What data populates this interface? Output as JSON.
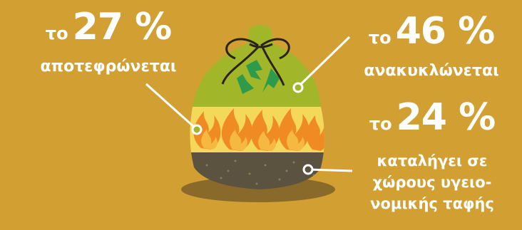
{
  "callouts": {
    "incinerated": {
      "prefix": "το",
      "percent": "27 %",
      "text": "αποτεφρώνεται"
    },
    "recycled": {
      "prefix": "το",
      "percent": "46 %",
      "text": "ανακυκλώνεται"
    },
    "landfill": {
      "prefix": "το",
      "percent": "24 %",
      "text_lines": [
        "καταλήγει σε",
        "χώρους υγειο-",
        "νομικής ταφής"
      ]
    }
  },
  "colors": {
    "background": "#d2a032",
    "recycled_layer": "#a2b62a",
    "fire_layer": "#f4d85a",
    "landfill_layer": "#5c5240",
    "flame_outer": "#f08a22",
    "flame_inner": "#f5b840",
    "recycle_symbol": "#2e9a4c",
    "tie": "#2a2418",
    "shadow": "#8a6a2a"
  },
  "icons": [
    "recycle-icon",
    "flame-icon",
    "bag-tie-icon"
  ]
}
